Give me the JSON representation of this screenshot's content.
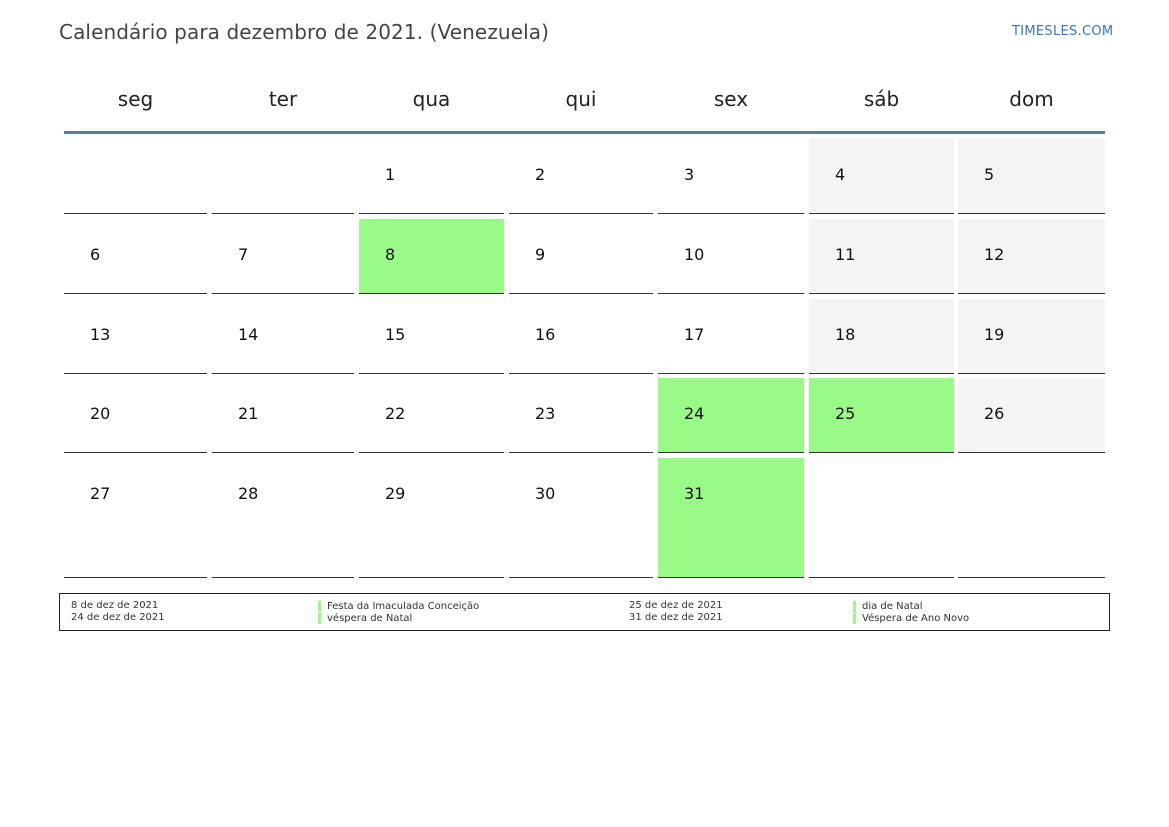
{
  "header": {
    "title": "Calendário para dezembro de 2021. (Venezuela)",
    "brand": "TIMESLES.COM"
  },
  "weekdays": [
    "seg",
    "ter",
    "qua",
    "qui",
    "sex",
    "sáb",
    "dom"
  ],
  "days": [
    {
      "d": "1",
      "type": "normal"
    },
    {
      "d": "2",
      "type": "normal"
    },
    {
      "d": "3",
      "type": "normal"
    },
    {
      "d": "4",
      "type": "weekend"
    },
    {
      "d": "5",
      "type": "weekend"
    },
    {
      "d": "6",
      "type": "normal"
    },
    {
      "d": "7",
      "type": "normal"
    },
    {
      "d": "8",
      "type": "holiday"
    },
    {
      "d": "9",
      "type": "normal"
    },
    {
      "d": "10",
      "type": "normal"
    },
    {
      "d": "11",
      "type": "weekend"
    },
    {
      "d": "12",
      "type": "weekend"
    },
    {
      "d": "13",
      "type": "normal"
    },
    {
      "d": "14",
      "type": "normal"
    },
    {
      "d": "15",
      "type": "normal"
    },
    {
      "d": "16",
      "type": "normal"
    },
    {
      "d": "17",
      "type": "normal"
    },
    {
      "d": "18",
      "type": "weekend"
    },
    {
      "d": "19",
      "type": "weekend"
    },
    {
      "d": "20",
      "type": "normal"
    },
    {
      "d": "21",
      "type": "normal"
    },
    {
      "d": "22",
      "type": "normal"
    },
    {
      "d": "23",
      "type": "normal"
    },
    {
      "d": "24",
      "type": "holiday"
    },
    {
      "d": "25",
      "type": "holiday"
    },
    {
      "d": "26",
      "type": "weekend"
    },
    {
      "d": "27",
      "type": "normal"
    },
    {
      "d": "28",
      "type": "normal"
    },
    {
      "d": "29",
      "type": "normal"
    },
    {
      "d": "30",
      "type": "normal"
    },
    {
      "d": "31",
      "type": "holiday"
    }
  ],
  "legend": [
    {
      "date": "8 de dez de 2021",
      "name": "Festa da Imaculada Conceição"
    },
    {
      "date": "25 de dez de 2021",
      "name": "dia de Natal"
    },
    {
      "date": "24 de dez de 2021",
      "name": "véspera de Natal"
    },
    {
      "date": "31 de dez de 2021",
      "name": "Véspera de Ano Novo"
    }
  ],
  "colors": {
    "holiday": "#99fa88",
    "weekend": "#f4f4f4",
    "header_rule": "#5a7ba4",
    "brand": "#3a78b5"
  }
}
